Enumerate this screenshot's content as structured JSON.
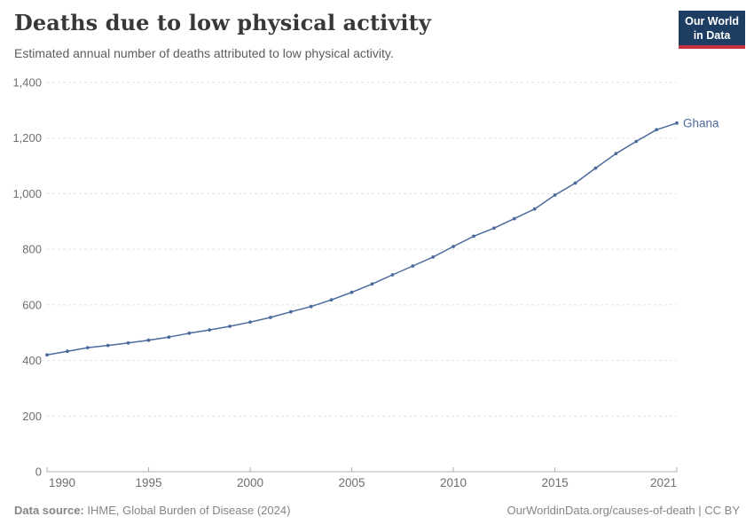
{
  "header": {
    "title": "Deaths due to low physical activity",
    "subtitle": "Estimated annual number of deaths attributed to low physical activity."
  },
  "logo": {
    "line1": "Our World",
    "line2": "in Data",
    "bg_color": "#1d3d63",
    "stripe_color": "#c2313c"
  },
  "chart_data": {
    "type": "line",
    "title": "Deaths due to low physical activity",
    "subtitle": "Estimated annual number of deaths attributed to low physical activity.",
    "x": [
      1990,
      1991,
      1992,
      1993,
      1994,
      1995,
      1996,
      1997,
      1998,
      1999,
      2000,
      2001,
      2002,
      2003,
      2004,
      2005,
      2006,
      2007,
      2008,
      2009,
      2010,
      2011,
      2012,
      2013,
      2014,
      2015,
      2016,
      2017,
      2018,
      2019,
      2020,
      2021
    ],
    "series": [
      {
        "name": "Ghana",
        "color": "#4c6a9c",
        "values": [
          420,
          433,
          446,
          454,
          463,
          473,
          484,
          498,
          510,
          523,
          538,
          555,
          575,
          594,
          618,
          645,
          675,
          708,
          740,
          772,
          810,
          847,
          876,
          910,
          945,
          995,
          1038,
          1092,
          1144,
          1188,
          1230,
          1254
        ]
      }
    ],
    "xlabel": "",
    "ylabel": "",
    "ylim": [
      0,
      1400
    ],
    "y_ticks": [
      0,
      200,
      400,
      600,
      800,
      1000,
      1200,
      1400
    ],
    "x_ticks": [
      1990,
      1995,
      2000,
      2005,
      2010,
      2015,
      2021
    ],
    "grid": "dashed-horizontal",
    "legend": "end-of-line-label"
  },
  "footer": {
    "source_label": "Data source:",
    "source_value": " IHME, Global Burden of Disease (2024)",
    "credit": "OurWorldinData.org/causes-of-death | CC BY"
  },
  "colors": {
    "line": "#4c6a9c",
    "axis_text": "#6e6e6e",
    "gridline": "#e2e2e2",
    "axis_line": "#afafaf"
  }
}
